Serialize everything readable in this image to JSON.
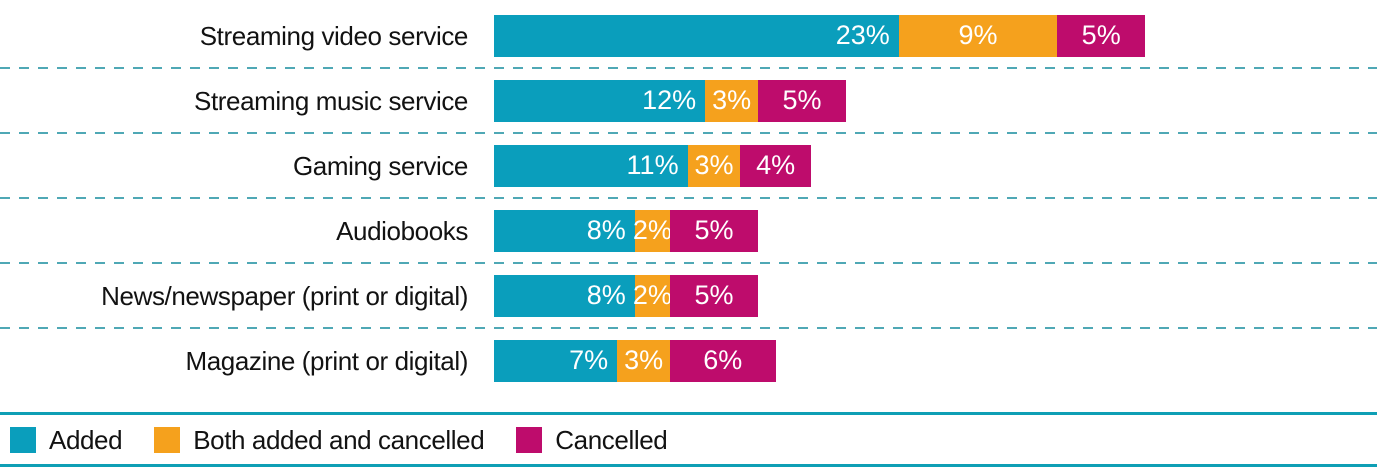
{
  "chart_data": {
    "type": "bar",
    "orientation": "horizontal",
    "stacked": true,
    "title": "",
    "xlabel": "",
    "ylabel": "",
    "categories": [
      "Streaming video service",
      "Streaming music service",
      "Gaming service",
      "Audiobooks",
      "News/newspaper (print or digital)",
      "Magazine (print or digital)"
    ],
    "series": [
      {
        "name": "Added",
        "color": "#0a9ebc",
        "values": [
          23,
          12,
          11,
          8,
          8,
          7
        ]
      },
      {
        "name": "Both added and cancelled",
        "color": "#f5a11d",
        "values": [
          9,
          3,
          3,
          2,
          2,
          3
        ]
      },
      {
        "name": "Cancelled",
        "color": "#be0c6c",
        "values": [
          5,
          5,
          4,
          5,
          5,
          6
        ]
      }
    ],
    "value_suffix": "%",
    "data_labels": true,
    "legend_position": "bottom",
    "grid": "dashed-teal-row-separators",
    "xlim": [
      0,
      50
    ]
  },
  "legend": {
    "items": [
      {
        "label": "Added",
        "color": "#0a9ebc"
      },
      {
        "label": "Both added and cancelled",
        "color": "#f5a11d"
      },
      {
        "label": "Cancelled",
        "color": "#be0c6c"
      }
    ]
  },
  "colors": {
    "background": "#ffffff",
    "added": "#0a9ebc",
    "both_added_and_cancelled": "#f5a11d",
    "cancelled": "#be0c6c",
    "separator_dashed": "#4fa8b5",
    "legend_rule": "#0e9fb5",
    "category_text": "#121212",
    "bar_value_text": "#ffffff"
  }
}
